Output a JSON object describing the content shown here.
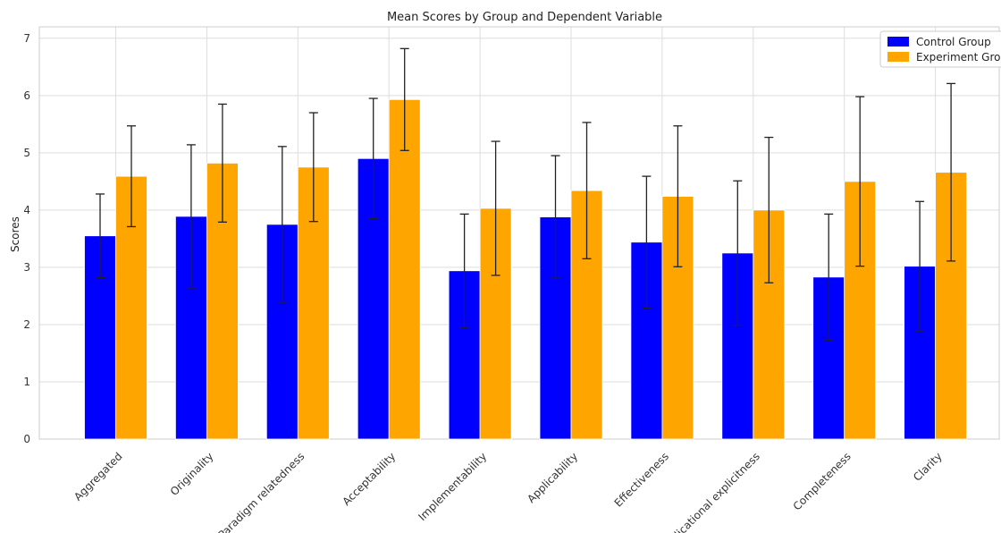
{
  "chart_data": {
    "type": "bar",
    "title": "Mean Scores by Group and Dependent Variable",
    "xlabel": "",
    "ylabel": "Scores",
    "ylim": [
      0,
      7.2
    ],
    "yticks": [
      0,
      1,
      2,
      3,
      4,
      5,
      6,
      7
    ],
    "grid": true,
    "legend_position": "top-right",
    "categories": [
      "Aggregated",
      "Originality",
      "Paradigm relatedness",
      "Acceptability",
      "Implementability",
      "Applicability",
      "Effectiveness",
      "Implicational explicitness",
      "Completeness",
      "Clarity"
    ],
    "series": [
      {
        "name": "Control Group",
        "color": "#0000ff",
        "values": [
          3.55,
          3.89,
          3.75,
          4.9,
          2.94,
          3.88,
          3.44,
          3.25,
          2.83,
          3.02
        ],
        "error": [
          0.73,
          1.25,
          1.36,
          1.05,
          0.99,
          1.07,
          1.15,
          1.26,
          1.1,
          1.13
        ]
      },
      {
        "name": "Experiment Group",
        "color": "#ffa500",
        "values": [
          4.59,
          4.82,
          4.75,
          5.93,
          4.03,
          4.34,
          4.24,
          4.0,
          4.5,
          4.66
        ],
        "error": [
          0.88,
          1.03,
          0.95,
          0.89,
          1.17,
          1.19,
          1.23,
          1.27,
          1.48,
          1.55
        ]
      }
    ]
  }
}
